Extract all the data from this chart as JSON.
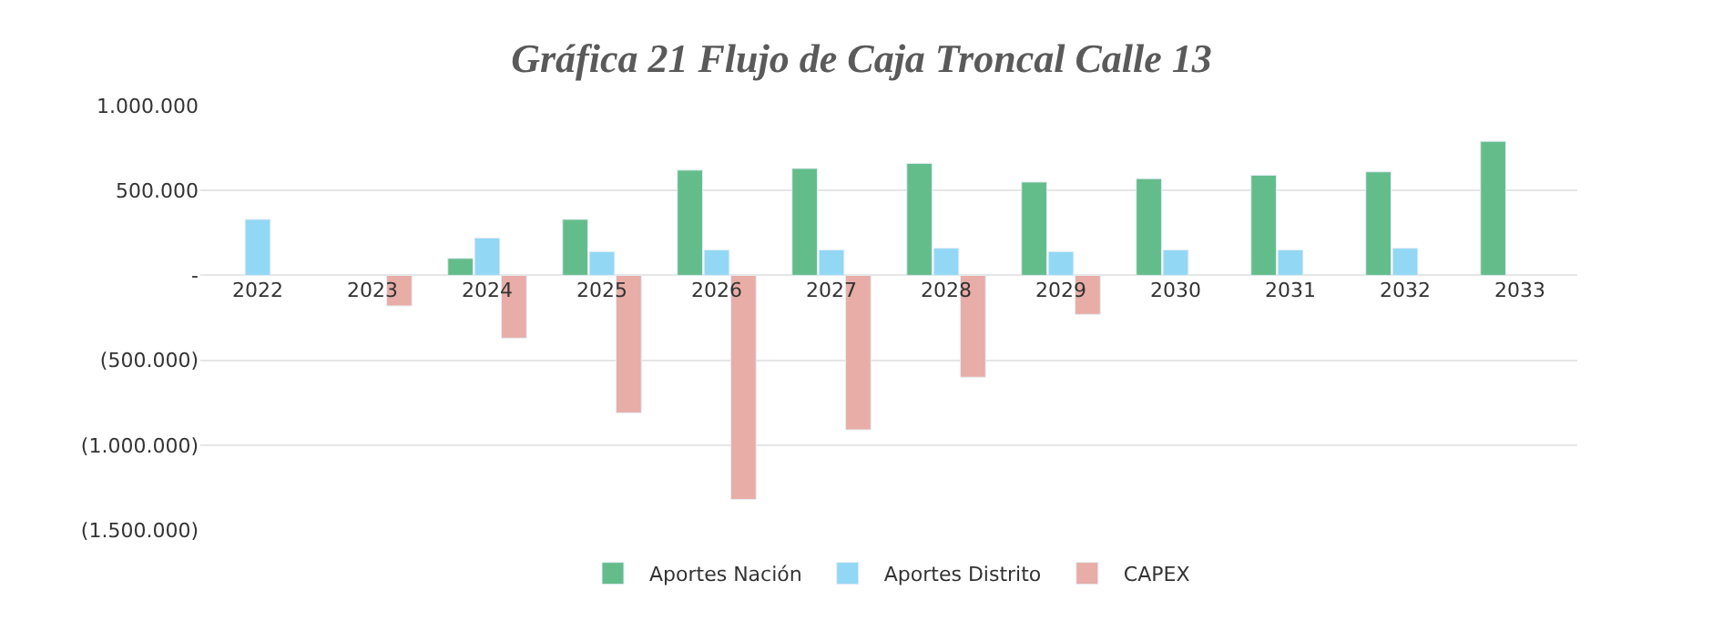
{
  "chart_data": {
    "type": "bar",
    "title": "Gráfica 21 Flujo de Caja Troncal Calle 13",
    "categories": [
      "2022",
      "2023",
      "2024",
      "2025",
      "2026",
      "2027",
      "2028",
      "2029",
      "2030",
      "2031",
      "2032",
      "2033"
    ],
    "series": [
      {
        "name": "Aportes Nación",
        "color": "#63bd8b",
        "values": [
          null,
          null,
          100000,
          330000,
          620000,
          630000,
          660000,
          550000,
          570000,
          590000,
          610000,
          790000
        ]
      },
      {
        "name": "Aportes Distrito",
        "color": "#92d8f4",
        "values": [
          330000,
          null,
          220000,
          140000,
          150000,
          150000,
          160000,
          140000,
          150000,
          150000,
          160000,
          null
        ]
      },
      {
        "name": "CAPEX",
        "color": "#e8ada6",
        "values": [
          null,
          -180000,
          -370000,
          -810000,
          -1320000,
          -910000,
          -600000,
          -230000,
          null,
          null,
          null,
          null
        ]
      }
    ],
    "ylim": [
      -1500000,
      1000000
    ],
    "yticks": [
      {
        "value": 1000000,
        "label": "1.000.000"
      },
      {
        "value": 500000,
        "label": "500.000"
      },
      {
        "value": 0,
        "label": "-"
      },
      {
        "value": -500000,
        "label": "(500.000)"
      },
      {
        "value": -1000000,
        "label": "(1.000.000)"
      },
      {
        "value": -1500000,
        "label": "(1.500.000)"
      }
    ],
    "grid": "y",
    "legend": "bottom"
  }
}
